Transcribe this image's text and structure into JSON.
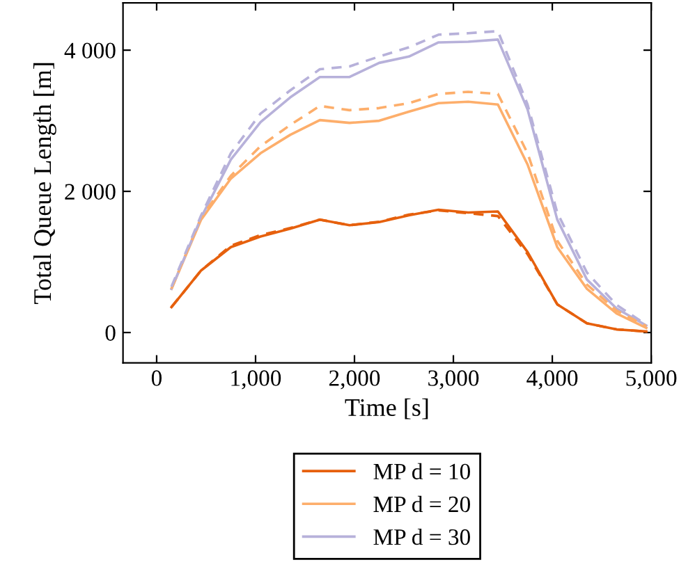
{
  "chart_data": {
    "type": "line",
    "xlabel": "Time [s]",
    "ylabel": "Total Queue Length [m]",
    "x": [
      150,
      450,
      750,
      1050,
      1350,
      1650,
      1950,
      2250,
      2550,
      2850,
      3150,
      3450,
      3750,
      4050,
      4350,
      4650,
      4950
    ],
    "xlim": [
      -340,
      5000
    ],
    "ylim": [
      -430,
      4670
    ],
    "xticks": [
      {
        "value": 0,
        "label": "0"
      },
      {
        "value": 1000,
        "label": "1,000"
      },
      {
        "value": 2000,
        "label": "2,000"
      },
      {
        "value": 3000,
        "label": "3,000"
      },
      {
        "value": 4000,
        "label": "4,000"
      },
      {
        "value": 5000,
        "label": "5,000"
      }
    ],
    "yticks": [
      {
        "value": 0,
        "label": "0"
      },
      {
        "value": 2000,
        "label": "2 000"
      },
      {
        "value": 4000,
        "label": "4 000"
      }
    ],
    "grid": false,
    "legend": "bottom",
    "series": [
      {
        "name": "MP d = 10",
        "color": "#e6600d",
        "line_style": "solid",
        "values": [
          360,
          880,
          1210,
          1360,
          1470,
          1600,
          1520,
          1565,
          1660,
          1740,
          1700,
          1715,
          1140,
          400,
          130,
          45,
          15
        ]
      },
      {
        "name": "MP d = 20",
        "color": "#fdae6b",
        "line_style": "solid",
        "values": [
          620,
          1600,
          2180,
          2540,
          2800,
          3010,
          2970,
          3000,
          3130,
          3250,
          3270,
          3230,
          2380,
          1210,
          620,
          270,
          65
        ]
      },
      {
        "name": "MP d = 30",
        "color": "#b7b1da",
        "line_style": "solid",
        "values": [
          620,
          1630,
          2450,
          2980,
          3330,
          3620,
          3620,
          3820,
          3910,
          4110,
          4120,
          4150,
          3160,
          1600,
          750,
          340,
          100
        ]
      },
      {
        "color": "#e6600d",
        "line_style": "dashed",
        "values": [
          360,
          880,
          1230,
          1380,
          1480,
          1600,
          1520,
          1570,
          1670,
          1730,
          1690,
          1650,
          1110,
          400,
          130,
          45,
          15
        ]
      },
      {
        "color": "#fdae6b",
        "line_style": "dashed",
        "values": [
          620,
          1630,
          2220,
          2640,
          2940,
          3210,
          3150,
          3180,
          3250,
          3380,
          3410,
          3380,
          2540,
          1300,
          680,
          310,
          90
        ]
      },
      {
        "color": "#b7b1da",
        "line_style": "dashed",
        "values": [
          650,
          1660,
          2540,
          3100,
          3430,
          3730,
          3770,
          3910,
          4040,
          4220,
          4240,
          4270,
          3230,
          1700,
          850,
          390,
          110
        ]
      }
    ]
  }
}
